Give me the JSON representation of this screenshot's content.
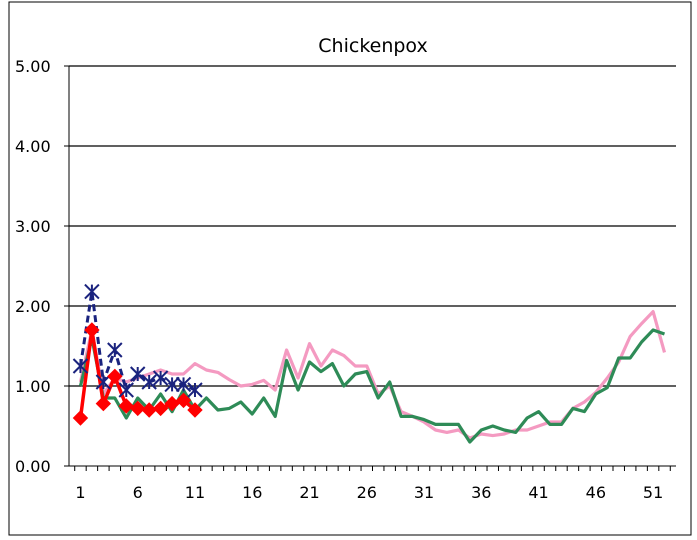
{
  "chart_data": {
    "type": "line",
    "title": "Chickenpox",
    "xlabel": "",
    "ylabel": "",
    "xlim": [
      0,
      53
    ],
    "ylim": [
      0,
      5
    ],
    "x_ticks": [
      "1",
      "6",
      "11",
      "16",
      "21",
      "26",
      "31",
      "36",
      "41",
      "46",
      "51"
    ],
    "y_ticks": [
      "0.00",
      "1.00",
      "2.00",
      "3.00",
      "4.00",
      "5.00"
    ],
    "grid": "horizontal",
    "legend": "none",
    "series": [
      {
        "color": "#f49ac1",
        "style": "solid",
        "marker": "none",
        "x": [
          1,
          2,
          3,
          4,
          5,
          6,
          7,
          8,
          9,
          10,
          11,
          12,
          13,
          14,
          15,
          16,
          17,
          18,
          19,
          20,
          21,
          22,
          23,
          24,
          25,
          26,
          27,
          28,
          29,
          30,
          31,
          32,
          33,
          34,
          35,
          36,
          37,
          38,
          39,
          40,
          41,
          42,
          43,
          44,
          45,
          46,
          47,
          48,
          49,
          50,
          51,
          52
        ],
        "values": [
          1.05,
          1.7,
          0.9,
          1.1,
          1.05,
          1.1,
          1.15,
          1.2,
          1.15,
          1.15,
          1.28,
          1.2,
          1.17,
          1.08,
          1.0,
          1.02,
          1.07,
          0.95,
          1.45,
          1.1,
          1.53,
          1.25,
          1.45,
          1.38,
          1.25,
          1.25,
          0.9,
          1.0,
          0.68,
          0.62,
          0.55,
          0.45,
          0.42,
          0.45,
          0.35,
          0.4,
          0.38,
          0.4,
          0.45,
          0.45,
          0.5,
          0.55,
          0.55,
          0.72,
          0.8,
          0.92,
          1.1,
          1.3,
          1.62,
          1.78,
          1.93,
          1.42
        ]
      },
      {
        "color": "#2e8b57",
        "style": "solid",
        "marker": "none",
        "x": [
          1,
          2,
          3,
          4,
          5,
          6,
          7,
          8,
          9,
          10,
          11,
          12,
          13,
          14,
          15,
          16,
          17,
          18,
          19,
          20,
          21,
          22,
          23,
          24,
          25,
          26,
          27,
          28,
          29,
          30,
          31,
          32,
          33,
          34,
          35,
          36,
          37,
          38,
          39,
          40,
          41,
          42,
          43,
          44,
          45,
          46,
          47,
          48,
          49,
          50,
          51,
          52
        ],
        "values": [
          1.0,
          1.6,
          0.85,
          0.85,
          0.6,
          0.85,
          0.7,
          0.9,
          0.68,
          0.95,
          0.7,
          0.85,
          0.7,
          0.72,
          0.8,
          0.65,
          0.85,
          0.62,
          1.32,
          0.95,
          1.3,
          1.18,
          1.28,
          1.0,
          1.15,
          1.18,
          0.85,
          1.05,
          0.62,
          0.62,
          0.58,
          0.52,
          0.52,
          0.52,
          0.3,
          0.45,
          0.5,
          0.45,
          0.42,
          0.6,
          0.68,
          0.52,
          0.52,
          0.72,
          0.68,
          0.9,
          0.98,
          1.35,
          1.35,
          1.55,
          1.7,
          1.65
        ]
      },
      {
        "color": "#1a237e",
        "style": "dashed",
        "marker": "asterisk",
        "x": [
          1,
          2,
          3,
          4,
          5,
          6,
          7,
          8,
          9,
          10,
          11
        ],
        "values": [
          1.25,
          2.18,
          1.05,
          1.45,
          0.95,
          1.15,
          1.05,
          1.1,
          1.02,
          1.02,
          0.95
        ]
      },
      {
        "color": "#ff0000",
        "style": "solid",
        "marker": "diamond",
        "x": [
          1,
          2,
          3,
          4,
          5,
          6,
          7,
          8,
          9,
          10,
          11
        ],
        "values": [
          0.6,
          1.7,
          0.78,
          1.12,
          0.75,
          0.72,
          0.7,
          0.72,
          0.78,
          0.82,
          0.7
        ]
      }
    ]
  }
}
